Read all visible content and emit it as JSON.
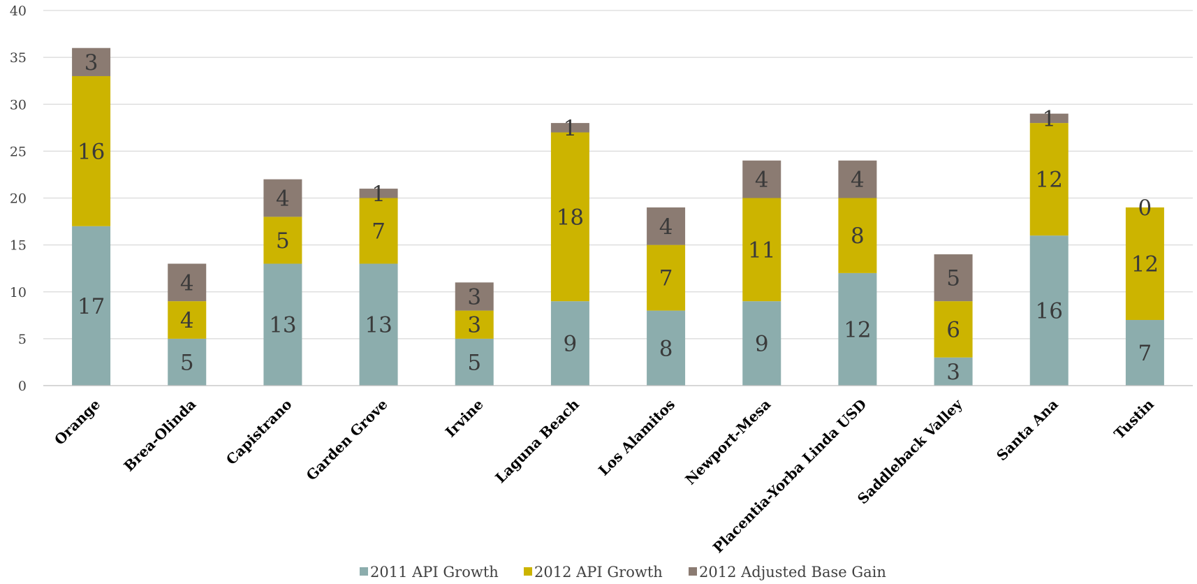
{
  "chart_data": {
    "type": "bar",
    "stacked": true,
    "categories": [
      "Orange",
      "Brea-Olinda",
      "Capistrano",
      "Garden Grove",
      "Irvine",
      "Laguna Beach",
      "Los Alamitos",
      "Newport-Mesa",
      "Placentia-Yorba Linda USD",
      "Saddleback Valley",
      "Santa Ana",
      "Tustin"
    ],
    "series": [
      {
        "name": "2011 API Growth",
        "color": "#8cadad",
        "values": [
          17,
          5,
          13,
          13,
          5,
          9,
          8,
          9,
          12,
          3,
          16,
          7
        ]
      },
      {
        "name": "2012 API Growth",
        "color": "#ccb400",
        "values": [
          16,
          4,
          5,
          7,
          3,
          18,
          7,
          11,
          8,
          6,
          12,
          12
        ]
      },
      {
        "name": "2012 Adjusted Base Gain",
        "color": "#8b7b72",
        "values": [
          3,
          4,
          4,
          1,
          3,
          1,
          4,
          4,
          4,
          5,
          1,
          0
        ]
      }
    ],
    "title": "",
    "xlabel": "",
    "ylabel": "",
    "ylim": [
      0,
      40
    ],
    "yticks": [
      0,
      5,
      10,
      15,
      20,
      25,
      30,
      35,
      40
    ],
    "grid": true,
    "legend": "bottom"
  }
}
